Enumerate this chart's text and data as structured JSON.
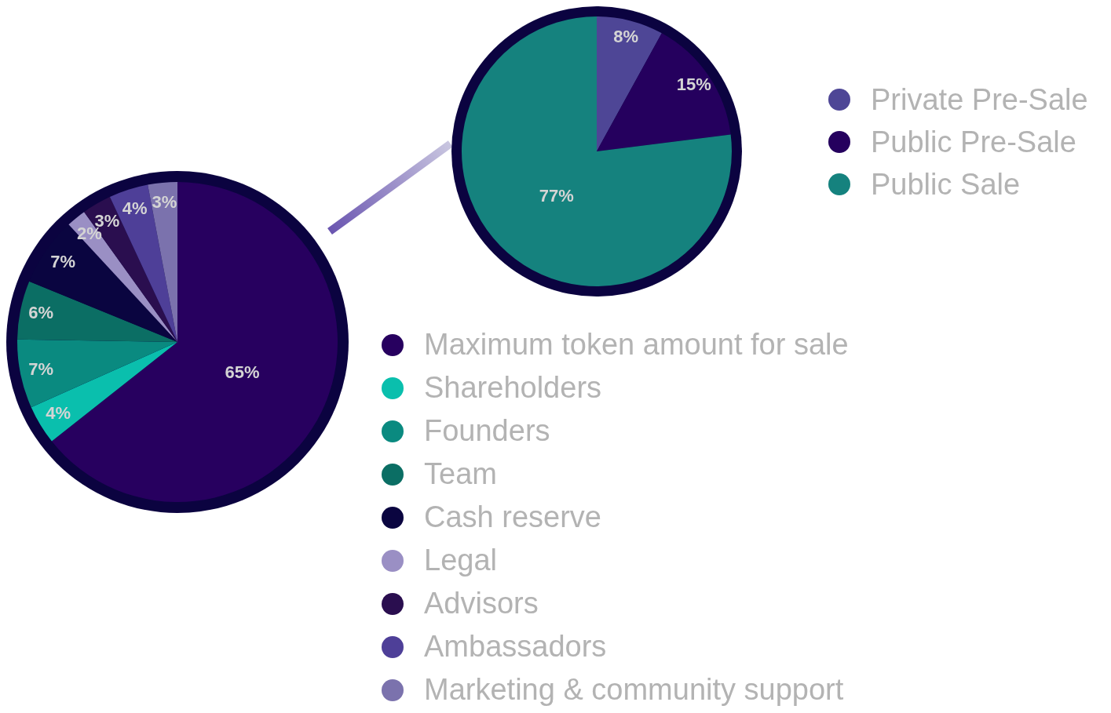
{
  "chart_data": [
    {
      "type": "pie",
      "categories": [
        "Maximum token amount for sale",
        "Shareholders",
        "Founders",
        "Team",
        "Cash reserve",
        "Legal",
        "Advisors",
        "Ambassadors",
        "Marketing & community support"
      ],
      "values": [
        65,
        4,
        7,
        6,
        7,
        2,
        3,
        4,
        3
      ],
      "colors": [
        "#27005f",
        "#0abfad",
        "#0a8a80",
        "#0b6e64",
        "#0a0540",
        "#9a8fc4",
        "#2a0e4f",
        "#4e3f98",
        "#7b72ad"
      ],
      "value_labels": [
        "65%",
        "4%",
        "7%",
        "6%",
        "7%",
        "2%",
        "3%",
        "4%",
        "3%"
      ],
      "legend": "bottom right"
    },
    {
      "type": "pie",
      "categories": [
        "Private Pre-Sale",
        "Public Pre-Sale",
        "Public Sale"
      ],
      "values": [
        8,
        15,
        77
      ],
      "colors": [
        "#4e4696",
        "#25005e",
        "#15827e"
      ],
      "value_labels": [
        "8%",
        "15%",
        "77%"
      ],
      "legend": "right"
    }
  ]
}
